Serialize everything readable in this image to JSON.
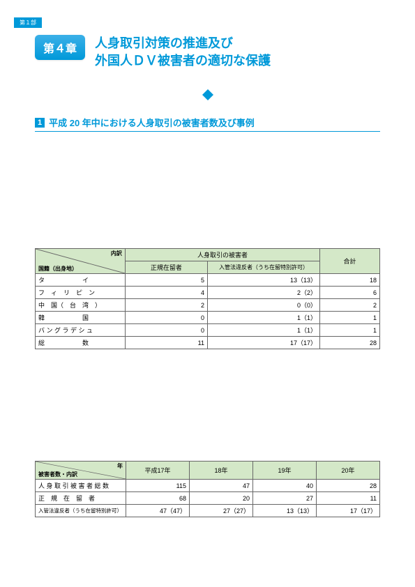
{
  "partLabel": "第１部",
  "chapterBadge": "第４章",
  "chapterTitleLine1": "人身取引対策の推進及び",
  "chapterTitleLine2": "外国人ＤＶ被害者の適切な保護",
  "sectionNumber": "1",
  "sectionTitle": "平成 20 年中における人身取引の被害者数及び事例",
  "table1": {
    "diagTop": "内訳",
    "diagBottom": "国籍（出身地）",
    "groupHeader": "人身取引の被害者",
    "col1": "正規在留者",
    "col2": "入管法違反者（うち在留特別許可）",
    "col3": "合計",
    "rows": [
      {
        "label": "タ　　　　　　イ",
        "v1": "5",
        "v2": "13（13）",
        "v3": "18"
      },
      {
        "label": "フ　ィ　リ　ピ　ン",
        "v1": "4",
        "v2": "2（2）",
        "v3": "6"
      },
      {
        "label": "中　国（　台　湾　）",
        "v1": "2",
        "v2": "0（0）",
        "v3": "2"
      },
      {
        "label": "韓　　　　　　国",
        "v1": "0",
        "v2": "1（1）",
        "v3": "1"
      },
      {
        "label": "バ ン グ ラ デ シ ュ",
        "v1": "0",
        "v2": "1（1）",
        "v3": "1"
      },
      {
        "label": "総　　　　　　数",
        "v1": "11",
        "v2": "17（17）",
        "v3": "28"
      }
    ]
  },
  "table2": {
    "diagTop": "年",
    "diagBottom": "被害者数・内訳",
    "cols": [
      "平成17年",
      "18年",
      "19年",
      "20年"
    ],
    "rows": [
      {
        "label": "人 身 取 引 被 害 者 総 数",
        "v": [
          "115",
          "47",
          "40",
          "28"
        ]
      },
      {
        "label": "正　規　在　留　者",
        "v": [
          "68",
          "20",
          "27",
          "11"
        ]
      },
      {
        "label": "入管法違反者（うち在留特別許可）",
        "v": [
          "47（47）",
          "27（27）",
          "13（13）",
          "17（17）"
        ]
      }
    ]
  }
}
